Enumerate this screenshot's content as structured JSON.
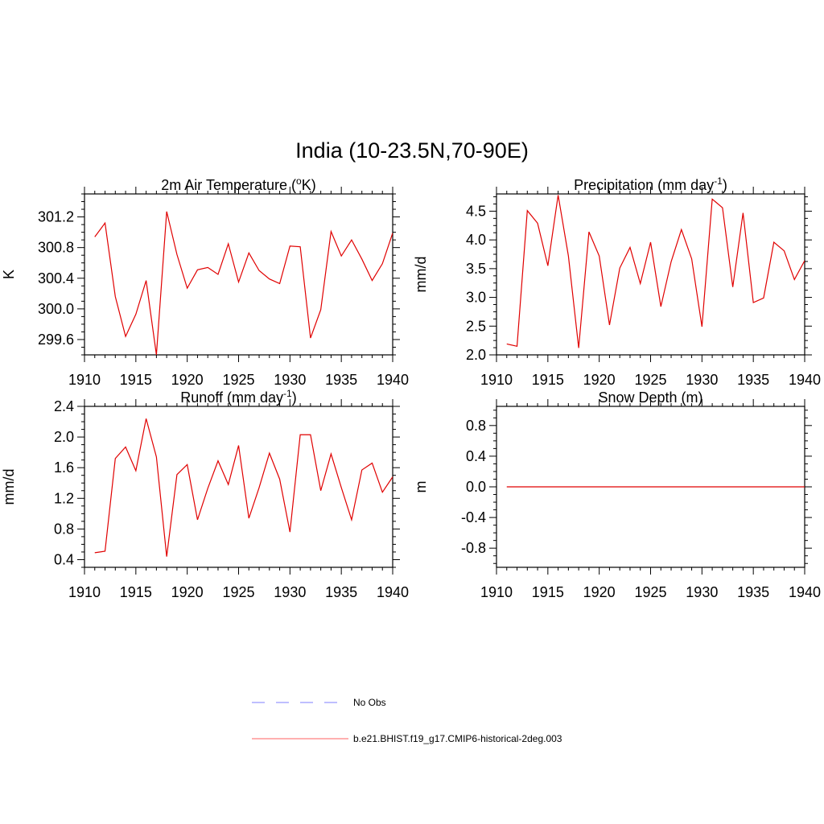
{
  "figure": {
    "title": "India (10-23.5N,70-90E)"
  },
  "legend": {
    "entries": [
      {
        "label": "No Obs",
        "color": "#9999ff",
        "style": "dashed"
      },
      {
        "label": "b.e21.BHIST.f19_g17.CMIP6-historical-2deg.003",
        "color": "#ff8080",
        "style": "solid"
      }
    ]
  },
  "chart_data": [
    {
      "type": "line",
      "title_main": "2m Air Temperature (",
      "title_sup": "o",
      "title_end": "K)",
      "ylabel": "K",
      "xlabel": "",
      "xlim": [
        1910,
        1940
      ],
      "ylim": [
        299.4,
        301.5
      ],
      "xticks": [
        1910,
        1915,
        1920,
        1925,
        1930,
        1935,
        1940
      ],
      "yticks": [
        299.6,
        300.0,
        300.4,
        300.8,
        301.2
      ],
      "ytick_labels": [
        "299.6",
        "300.0",
        "300.4",
        "300.8",
        "301.2"
      ],
      "grid": false,
      "series": [
        {
          "color": "#e00000",
          "x": [
            1911,
            1912,
            1913,
            1914,
            1915,
            1916,
            1917,
            1918,
            1919,
            1920,
            1921,
            1922,
            1923,
            1924,
            1925,
            1926,
            1927,
            1928,
            1929,
            1930,
            1931,
            1932,
            1933,
            1934,
            1935,
            1936,
            1937,
            1938,
            1939,
            1940
          ],
          "values": [
            300.94,
            301.12,
            300.16,
            299.64,
            299.93,
            300.37,
            299.4,
            301.27,
            300.71,
            300.27,
            300.51,
            300.54,
            300.45,
            300.85,
            300.35,
            300.73,
            300.5,
            300.39,
            300.33,
            300.82,
            300.81,
            299.62,
            299.99,
            301.01,
            300.69,
            300.9,
            300.65,
            300.37,
            300.59,
            300.99
          ]
        }
      ]
    },
    {
      "type": "line",
      "title_main": "Precipitation (mm day",
      "title_sup": "-1",
      "title_end": ")",
      "ylabel": "mm/d",
      "xlabel": "",
      "xlim": [
        1910,
        1940
      ],
      "ylim": [
        2.0,
        4.8
      ],
      "xticks": [
        1910,
        1915,
        1920,
        1925,
        1930,
        1935,
        1940
      ],
      "yticks": [
        2.0,
        2.5,
        3.0,
        3.5,
        4.0,
        4.5
      ],
      "ytick_labels": [
        "2.0",
        "2.5",
        "3.0",
        "3.5",
        "4.0",
        "4.5"
      ],
      "grid": false,
      "series": [
        {
          "color": "#e00000",
          "x": [
            1911,
            1912,
            1913,
            1914,
            1915,
            1916,
            1917,
            1918,
            1919,
            1920,
            1921,
            1922,
            1923,
            1924,
            1925,
            1926,
            1927,
            1928,
            1929,
            1930,
            1931,
            1932,
            1933,
            1934,
            1935,
            1936,
            1937,
            1938,
            1939,
            1940
          ],
          "values": [
            2.19,
            2.15,
            4.51,
            4.29,
            3.55,
            4.78,
            3.72,
            2.12,
            4.14,
            3.72,
            2.52,
            3.51,
            3.87,
            3.24,
            3.96,
            2.84,
            3.62,
            4.18,
            3.67,
            2.49,
            4.71,
            4.56,
            3.18,
            4.47,
            2.91,
            2.99,
            3.96,
            3.81,
            3.31,
            3.64
          ]
        }
      ]
    },
    {
      "type": "line",
      "title_main": "Runoff (mm day",
      "title_sup": "-1",
      "title_end": ")",
      "ylabel": "mm/d",
      "xlabel": "",
      "xlim": [
        1910,
        1940
      ],
      "ylim": [
        0.3,
        2.4
      ],
      "xticks": [
        1910,
        1915,
        1920,
        1925,
        1930,
        1935,
        1940
      ],
      "yticks": [
        0.4,
        0.8,
        1.2,
        1.6,
        2.0,
        2.4
      ],
      "ytick_labels": [
        "0.4",
        "0.8",
        "1.2",
        "1.6",
        "2.0",
        "2.4"
      ],
      "grid": false,
      "series": [
        {
          "color": "#e00000",
          "x": [
            1911,
            1912,
            1913,
            1914,
            1915,
            1916,
            1917,
            1918,
            1919,
            1920,
            1921,
            1922,
            1923,
            1924,
            1925,
            1926,
            1927,
            1928,
            1929,
            1930,
            1931,
            1932,
            1933,
            1934,
            1935,
            1936,
            1937,
            1938,
            1939,
            1940
          ],
          "values": [
            0.49,
            0.51,
            1.72,
            1.87,
            1.56,
            2.24,
            1.74,
            0.44,
            1.51,
            1.64,
            0.92,
            1.33,
            1.69,
            1.38,
            1.89,
            0.94,
            1.34,
            1.79,
            1.45,
            0.76,
            2.03,
            2.03,
            1.3,
            1.78,
            1.34,
            0.92,
            1.57,
            1.66,
            1.28,
            1.48
          ]
        }
      ]
    },
    {
      "type": "line",
      "title_main": "Snow Depth (m)",
      "title_sup": "",
      "title_end": "",
      "ylabel": "m",
      "xlabel": "",
      "xlim": [
        1910,
        1940
      ],
      "ylim": [
        -1.05,
        1.05
      ],
      "xticks": [
        1910,
        1915,
        1920,
        1925,
        1930,
        1935,
        1940
      ],
      "yticks": [
        -0.8,
        -0.4,
        0.0,
        0.4,
        0.8
      ],
      "ytick_labels": [
        "-0.8",
        "-0.4",
        "0.0",
        "0.4",
        "0.8"
      ],
      "grid": false,
      "series": [
        {
          "color": "#e00000",
          "x": [
            1911,
            1912,
            1913,
            1914,
            1915,
            1916,
            1917,
            1918,
            1919,
            1920,
            1921,
            1922,
            1923,
            1924,
            1925,
            1926,
            1927,
            1928,
            1929,
            1930,
            1931,
            1932,
            1933,
            1934,
            1935,
            1936,
            1937,
            1938,
            1939,
            1940
          ],
          "values": [
            0,
            0,
            0,
            0,
            0,
            0,
            0,
            0,
            0,
            0,
            0,
            0,
            0,
            0,
            0,
            0,
            0,
            0,
            0,
            0,
            0,
            0,
            0,
            0,
            0,
            0,
            0,
            0,
            0,
            0
          ]
        }
      ]
    }
  ]
}
